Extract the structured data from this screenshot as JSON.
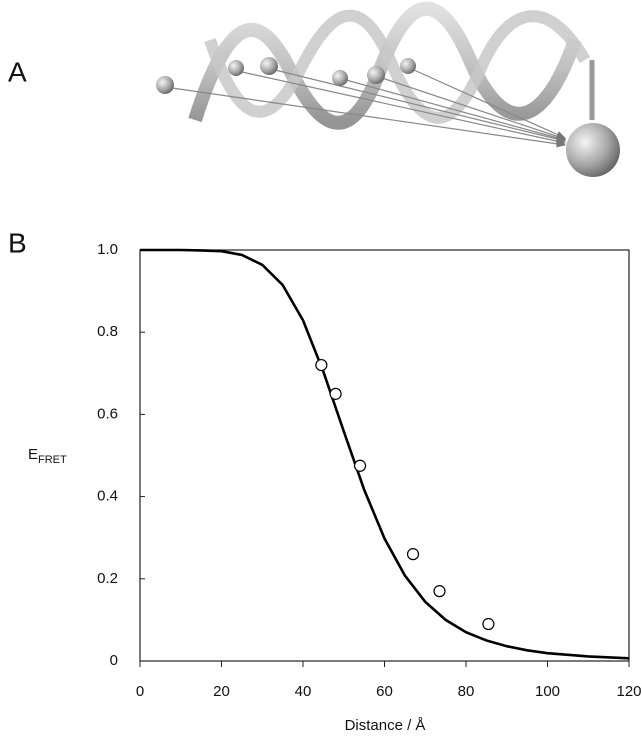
{
  "panel_labels": {
    "a": "A",
    "b": "B"
  },
  "chart_data": {
    "type": "scatter",
    "x_label": "Distance / Å",
    "y_label_main": "E",
    "y_label_sub": "FRET",
    "xlim": [
      0,
      120
    ],
    "xticks": [
      0,
      20,
      40,
      60,
      80,
      100,
      120
    ],
    "ylim": [
      0,
      1
    ],
    "yticks": [
      0,
      0.2,
      0.4,
      0.6,
      0.8,
      {
        "value": 1,
        "label": "1.0"
      }
    ],
    "curve": {
      "color": "#000000",
      "x": [
        0,
        5,
        10,
        15,
        20,
        25,
        30,
        35,
        40,
        45,
        50,
        55,
        60,
        65,
        70,
        75,
        80,
        85,
        90,
        95,
        100,
        110,
        120
      ],
      "values": [
        1,
        1,
        1,
        0.999,
        0.997,
        0.988,
        0.964,
        0.915,
        0.829,
        0.704,
        0.559,
        0.417,
        0.298,
        0.208,
        0.144,
        0.1,
        0.07,
        0.05,
        0.036,
        0.026,
        0.019,
        0.011,
        0.0066
      ]
    },
    "points": {
      "color": "#000000",
      "x": [
        44.5,
        48,
        54,
        67,
        73.5,
        85.5
      ],
      "values": [
        0.72,
        0.65,
        0.475,
        0.26,
        0.17,
        0.09
      ]
    }
  }
}
